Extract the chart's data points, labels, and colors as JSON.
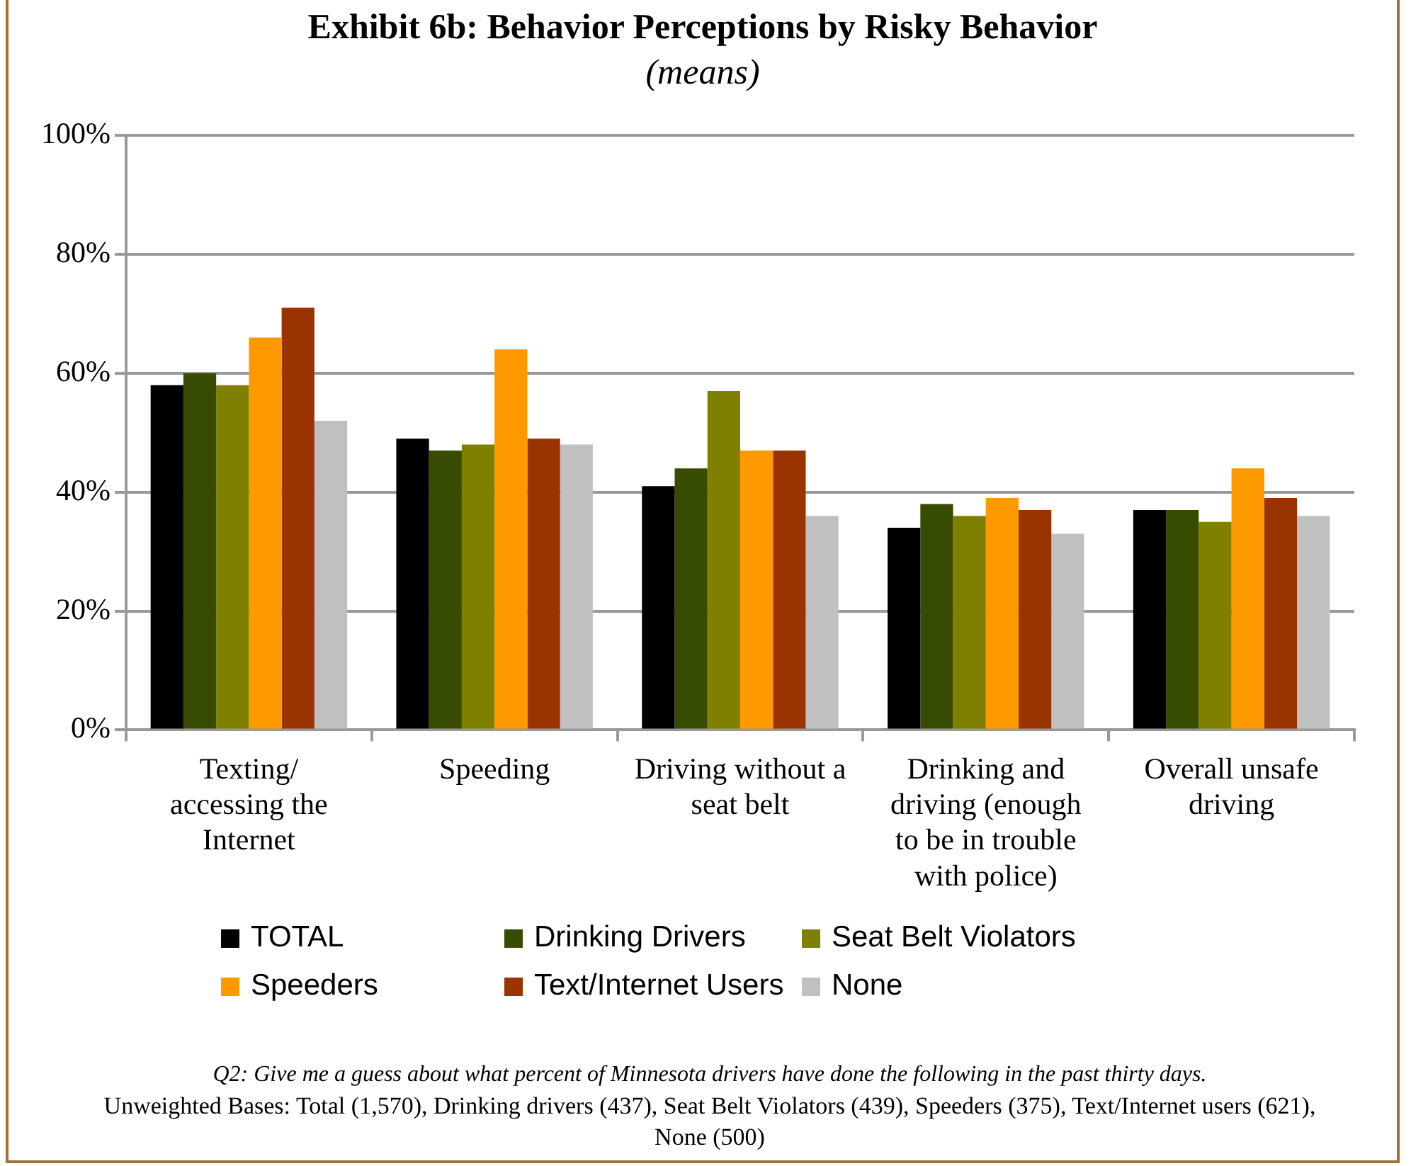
{
  "chart_data": {
    "type": "bar",
    "title": "Exhibit 6b: Behavior Perceptions by Risky Behavior",
    "subtitle": "(means)",
    "categories": [
      "Texting/ accessing the Internet",
      "Speeding",
      "Driving without a seat belt",
      "Drinking and driving (enough to be in trouble with police)",
      "Overall unsafe driving"
    ],
    "series": [
      {
        "name": "TOTAL",
        "color": "#000000",
        "values": [
          58,
          49,
          41,
          34,
          37
        ]
      },
      {
        "name": "Drinking Drivers",
        "color": "#384c00",
        "values": [
          60,
          47,
          44,
          38,
          37
        ]
      },
      {
        "name": "Seat Belt Violators",
        "color": "#808000",
        "values": [
          58,
          48,
          57,
          36,
          35
        ]
      },
      {
        "name": "Speeders",
        "color": "#ff9900",
        "values": [
          66,
          64,
          47,
          39,
          44
        ]
      },
      {
        "name": "Text/Internet Users",
        "color": "#993300",
        "values": [
          71,
          49,
          47,
          37,
          39
        ]
      },
      {
        "name": "None",
        "color": "#c0c0c0",
        "values": [
          52,
          48,
          36,
          33,
          36
        ]
      }
    ],
    "ylim": [
      0,
      100
    ],
    "yticks": [
      {
        "value": 0,
        "label": "0%"
      },
      {
        "value": 20,
        "label": "20%"
      },
      {
        "value": 40,
        "label": "40%"
      },
      {
        "value": 60,
        "label": "60%"
      },
      {
        "value": 80,
        "label": "80%"
      },
      {
        "value": 100,
        "label": "100%"
      }
    ],
    "grid": "y",
    "legend": "bottom",
    "annotations": [
      "Q2: Give me a guess about what percent of Minnesota drivers have done the following in the past thirty days.",
      "Unweighted Bases: Total (1,570), Drinking drivers (437), Seat Belt Violators (439), Speeders (375), Text/Internet users (621), None (500)"
    ]
  }
}
